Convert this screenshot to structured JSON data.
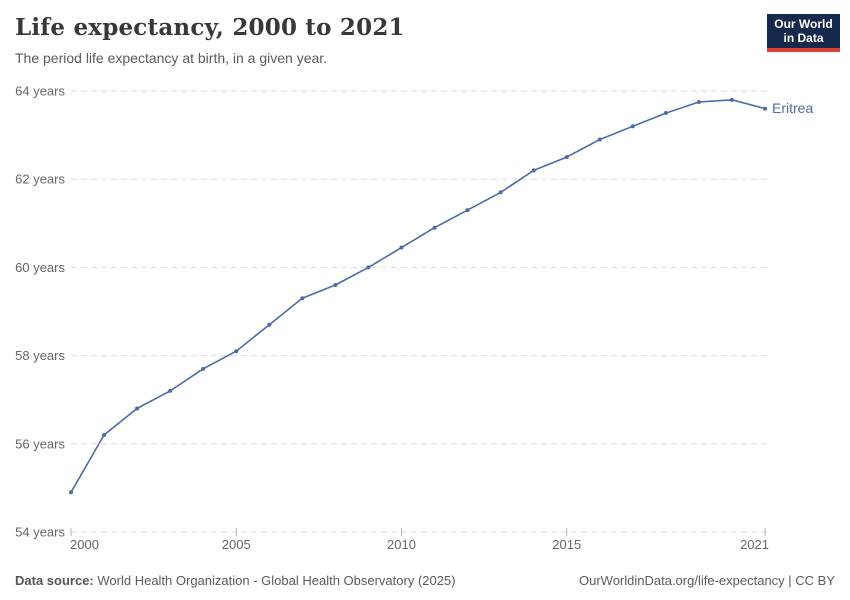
{
  "header": {
    "title": "Life expectancy, 2000 to 2021",
    "subtitle": "The period life expectancy at birth, in a given year.",
    "logo": {
      "line1": "Our World",
      "line2": "in Data",
      "bg_color": "#14294b",
      "accent_color": "#dc3f34",
      "text_color": "#ffffff"
    }
  },
  "chart_data": {
    "type": "line",
    "title": "Life expectancy, 2000 to 2021",
    "xlabel": "",
    "ylabel": "",
    "x": [
      2000,
      2001,
      2002,
      2003,
      2004,
      2005,
      2006,
      2007,
      2008,
      2009,
      2010,
      2011,
      2012,
      2013,
      2014,
      2015,
      2016,
      2017,
      2018,
      2019,
      2020,
      2021
    ],
    "series": [
      {
        "name": "Eritrea",
        "color": "#4c6ba6",
        "values": [
          54.9,
          56.2,
          56.8,
          57.2,
          57.7,
          58.1,
          58.7,
          59.3,
          59.6,
          60.0,
          60.45,
          60.9,
          61.3,
          61.7,
          62.2,
          62.5,
          62.9,
          63.2,
          63.5,
          63.75,
          63.8,
          63.6
        ]
      }
    ],
    "xlim": [
      2000,
      2021
    ],
    "ylim": [
      54,
      64
    ],
    "x_ticks": [
      2000,
      2005,
      2010,
      2015,
      2021
    ],
    "x_tick_labels": [
      "2000",
      "2005",
      "2010",
      "2015",
      "2021"
    ],
    "y_ticks": [
      54,
      56,
      58,
      60,
      62,
      64
    ],
    "y_tick_labels": [
      "54 years",
      "56 years",
      "58 years",
      "60 years",
      "62 years",
      "64 years"
    ],
    "grid": "horizontal-dashed",
    "legend": "end-of-line-label",
    "end_label": "Eritrea",
    "grid_color": "#dcdcdc",
    "tick_color": "#b0b0b0",
    "axis_text_color": "#666666"
  },
  "footer": {
    "source_label": "Data source:",
    "source_text": "World Health Organization - Global Health Observatory (2025)",
    "attribution": "OurWorldinData.org/life-expectancy | CC BY"
  }
}
